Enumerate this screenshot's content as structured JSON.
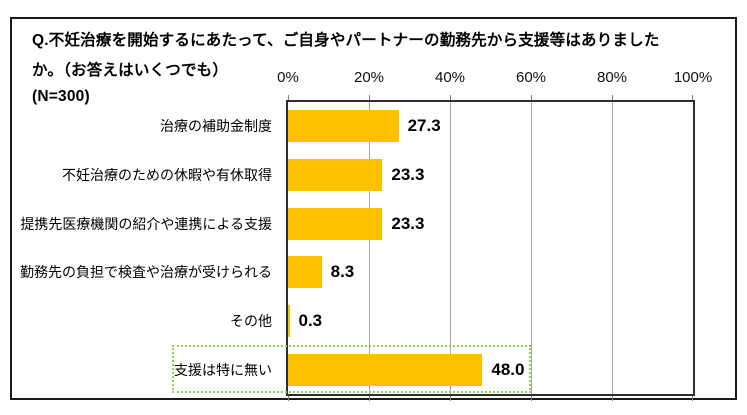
{
  "title": {
    "line1": "Q.不妊治療を開始するにあたって、ご自身やパートナーの勤務先から支援等はありました",
    "line2": "か。（お答えはいくつでも）",
    "sample": "(N=300)"
  },
  "chart_data": {
    "type": "bar",
    "orientation": "horizontal",
    "categories": [
      "治療の補助金制度",
      "不妊治療のための休暇や有休取得",
      "提携先医療機関の紹介や連携による支援",
      "勤務先の負担で検査や治療が受けられる",
      "その他",
      "支援は特に無い"
    ],
    "values": [
      27.3,
      23.3,
      23.3,
      8.3,
      0.3,
      48.0
    ],
    "value_labels": [
      "27.3",
      "23.3",
      "23.3",
      "8.3",
      "0.3",
      "48.0"
    ],
    "x_tick_labels": [
      "0%",
      "20%",
      "40%",
      "60%",
      "80%",
      "100%"
    ],
    "x_tick_values": [
      0,
      20,
      40,
      60,
      80,
      100
    ],
    "xlim": [
      0,
      100
    ],
    "grid": true,
    "legend": false,
    "bar_color": "#ffc000",
    "gridline_color": "#a6a6a6",
    "highlight_index": 5,
    "highlight_border_color": "#92d050"
  }
}
